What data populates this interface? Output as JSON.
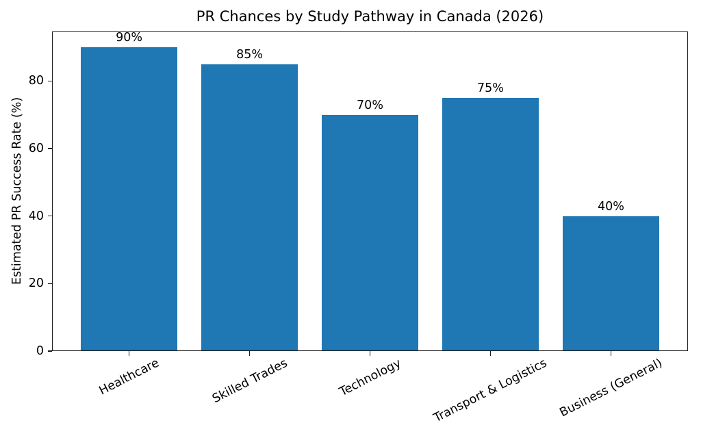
{
  "chart_data": {
    "type": "bar",
    "title": "PR Chances by Study Pathway in Canada (2026)",
    "xlabel": "",
    "ylabel": "Estimated PR Success Rate (%)",
    "categories": [
      "Healthcare",
      "Skilled Trades",
      "Technology",
      "Transport & Logistics",
      "Business (General)"
    ],
    "values": [
      90,
      85,
      70,
      75,
      40
    ],
    "bar_labels": [
      "90%",
      "85%",
      "70%",
      "75%",
      "40%"
    ],
    "yticks": [
      0,
      20,
      40,
      60,
      80
    ],
    "ylim": [
      0,
      94.7
    ],
    "bar_color": "#1f77b4",
    "bar_width_fraction": 0.8,
    "x_margin_units": 0.64,
    "x_tick_label_rotation_deg": 27,
    "grid": false,
    "legend": "none",
    "background": "#ffffff"
  }
}
